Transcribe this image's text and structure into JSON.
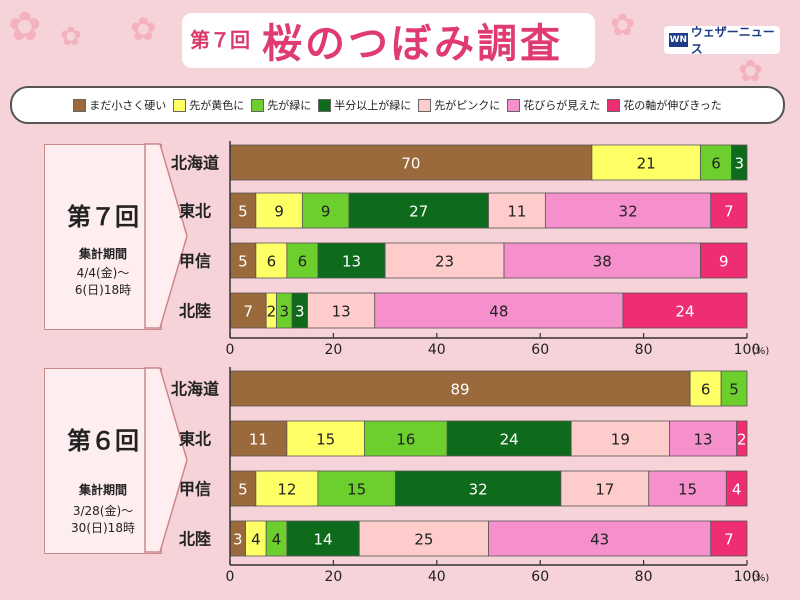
{
  "title": {
    "round": "第７回",
    "main": "桜のつぼみ調査"
  },
  "brand": {
    "logo": "WN",
    "name": "ウェザーニュース"
  },
  "colors": [
    "#9a6a3c",
    "#ffff66",
    "#6ccf2e",
    "#0f6b1c",
    "#ffcccc",
    "#f690cc",
    "#ee2d72"
  ],
  "text_colors": [
    "#ffffff",
    "#222222",
    "#222222",
    "#ffffff",
    "#222222",
    "#222222",
    "#ffffff"
  ],
  "chart_data": [
    {
      "type": "bar",
      "orientation": "horizontal",
      "stacked": true,
      "round": "第７回",
      "period_label": "集計期間",
      "period": [
        "4/4(金)〜",
        "6(日)18時"
      ],
      "categories": [
        "北海道",
        "東北",
        "甲信",
        "北陸"
      ],
      "series": [
        {
          "name": "まだ小さく硬い",
          "values": [
            70,
            5,
            5,
            7
          ]
        },
        {
          "name": "先が黄色に",
          "values": [
            21,
            9,
            6,
            2
          ]
        },
        {
          "name": "先が緑に",
          "values": [
            6,
            9,
            6,
            3
          ]
        },
        {
          "name": "半分以上が緑に",
          "values": [
            3,
            27,
            13,
            3
          ]
        },
        {
          "name": "先がピンクに",
          "values": [
            0,
            11,
            23,
            13
          ]
        },
        {
          "name": "花びらが見えた",
          "values": [
            0,
            32,
            38,
            48
          ]
        },
        {
          "name": "花の軸が伸びきった",
          "values": [
            0,
            7,
            9,
            24
          ]
        }
      ],
      "xlim": [
        0,
        100
      ],
      "xticks": [
        0,
        20,
        40,
        60,
        80,
        100
      ],
      "unit": "(%)"
    },
    {
      "type": "bar",
      "orientation": "horizontal",
      "stacked": true,
      "round": "第６回",
      "period_label": "集計期間",
      "period": [
        "3/28(金)〜",
        "30(日)18時"
      ],
      "categories": [
        "北海道",
        "東北",
        "甲信",
        "北陸"
      ],
      "series": [
        {
          "name": "まだ小さく硬い",
          "values": [
            89,
            11,
            5,
            3
          ]
        },
        {
          "name": "先が黄色に",
          "values": [
            6,
            15,
            12,
            4
          ]
        },
        {
          "name": "先が緑に",
          "values": [
            5,
            16,
            15,
            4
          ]
        },
        {
          "name": "半分以上が緑に",
          "values": [
            0,
            24,
            32,
            14
          ]
        },
        {
          "name": "先がピンクに",
          "values": [
            0,
            19,
            17,
            25
          ]
        },
        {
          "name": "花びらが見えた",
          "values": [
            0,
            13,
            15,
            43
          ]
        },
        {
          "name": "花の軸が伸びきった",
          "values": [
            0,
            2,
            4,
            7
          ]
        }
      ],
      "xlim": [
        0,
        100
      ],
      "xticks": [
        0,
        20,
        40,
        60,
        80,
        100
      ],
      "unit": "(%)"
    }
  ]
}
